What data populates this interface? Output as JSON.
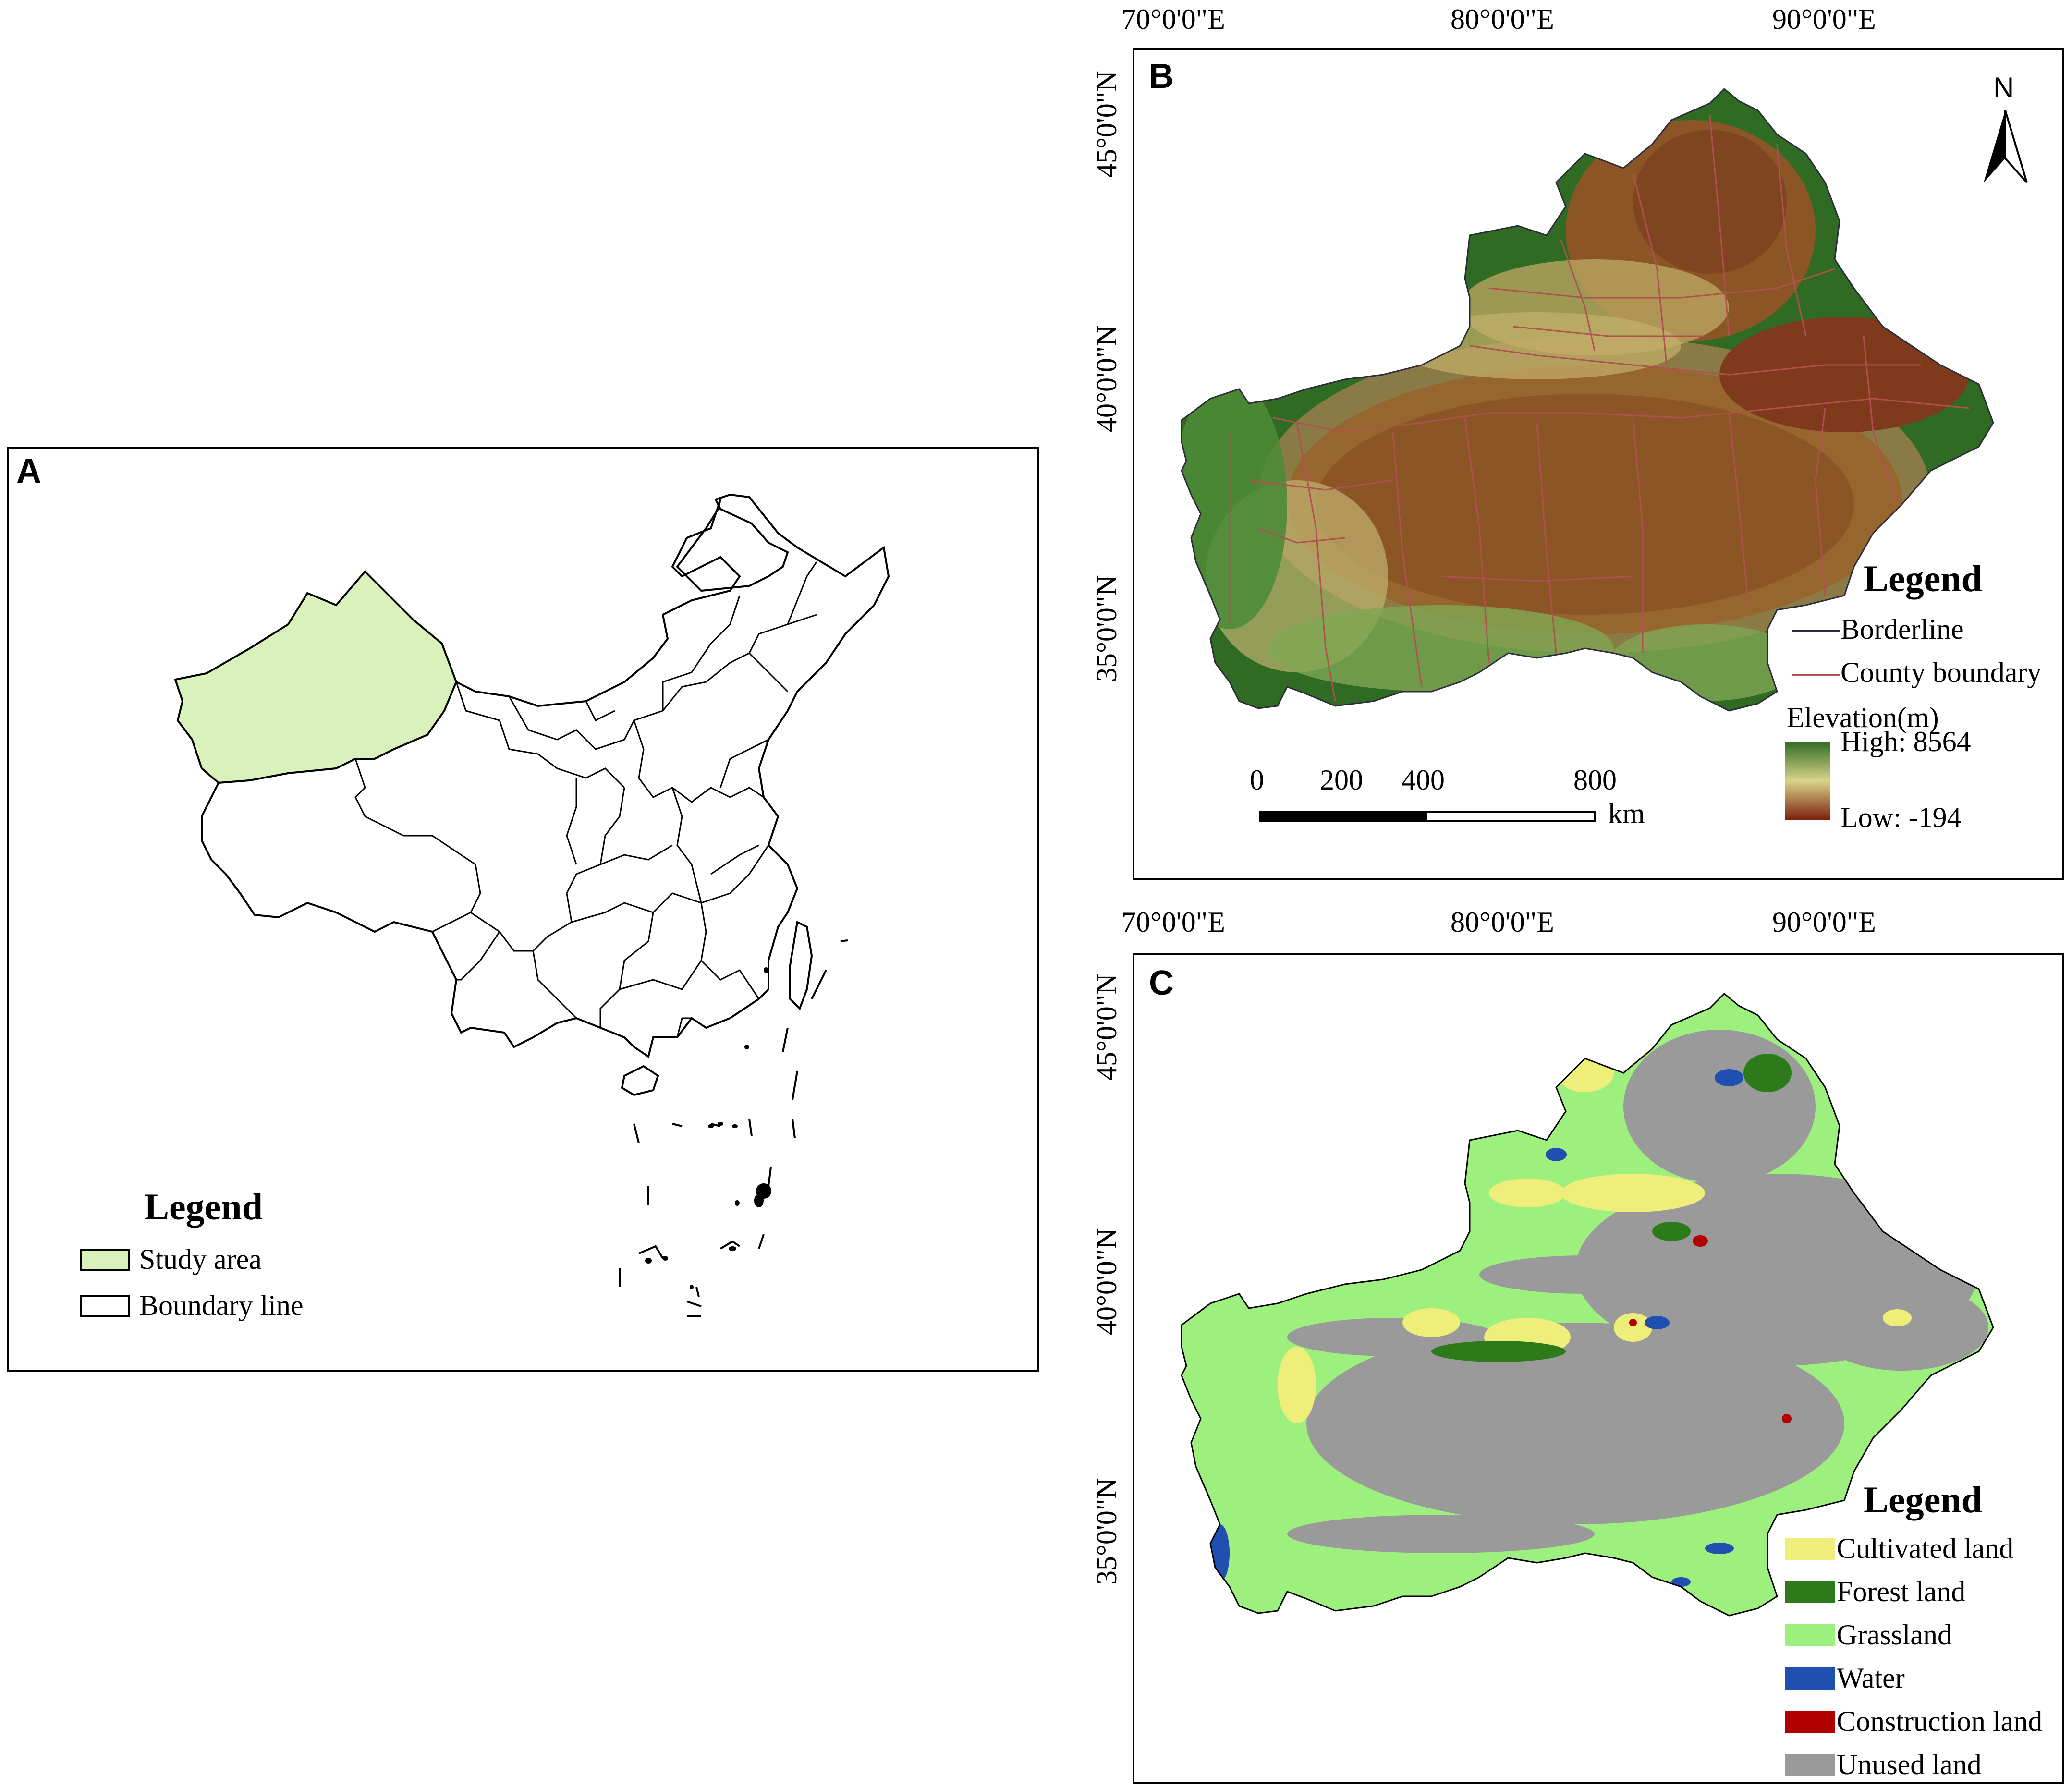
{
  "panelA": {
    "letter": "A",
    "legend": {
      "title": "Legend",
      "items": [
        {
          "label": "Study area",
          "color": "#d9f2bc"
        },
        {
          "label": "Boundary line",
          "color": "#ffffff"
        }
      ]
    }
  },
  "panelB": {
    "letter": "B",
    "lon_labels": [
      "70°0'0\"E",
      "80°0'0\"E",
      "90°0'0\"E"
    ],
    "lat_labels": [
      "45°0'0\"N",
      "40°0'0\"N",
      "35°0'0\"N"
    ],
    "north": "N",
    "scale": {
      "ticks": [
        "0",
        "200",
        "400",
        "800"
      ],
      "unit": "km"
    },
    "legend": {
      "title": "Legend",
      "borderline": "Borderline",
      "county_boundary": "County boundary",
      "elevation_title": "Elevation(m)",
      "high": "High: 8564",
      "low": "Low: -194",
      "colors": {
        "high": "#2f6b23",
        "mid": "#d8d488",
        "low": "#7a1e0c",
        "borderline": "#2b2b3a",
        "county": "#b05050"
      }
    }
  },
  "panelC": {
    "letter": "C",
    "lon_labels": [
      "70°0'0\"E",
      "80°0'0\"E",
      "90°0'0\"E"
    ],
    "lat_labels": [
      "45°0'0\"N",
      "40°0'0\"N",
      "35°0'0\"N"
    ],
    "legend": {
      "title": "Legend",
      "items": [
        {
          "label": "Cultivated land",
          "color": "#f0ee7a"
        },
        {
          "label": "Forest land",
          "color": "#2d7a1a"
        },
        {
          "label": "Grassland",
          "color": "#9ef07e"
        },
        {
          "label": "Water",
          "color": "#1f4fb0"
        },
        {
          "label": "Construction land",
          "color": "#b00000"
        },
        {
          "label": "Unused land",
          "color": "#9a9a9a"
        }
      ]
    }
  }
}
